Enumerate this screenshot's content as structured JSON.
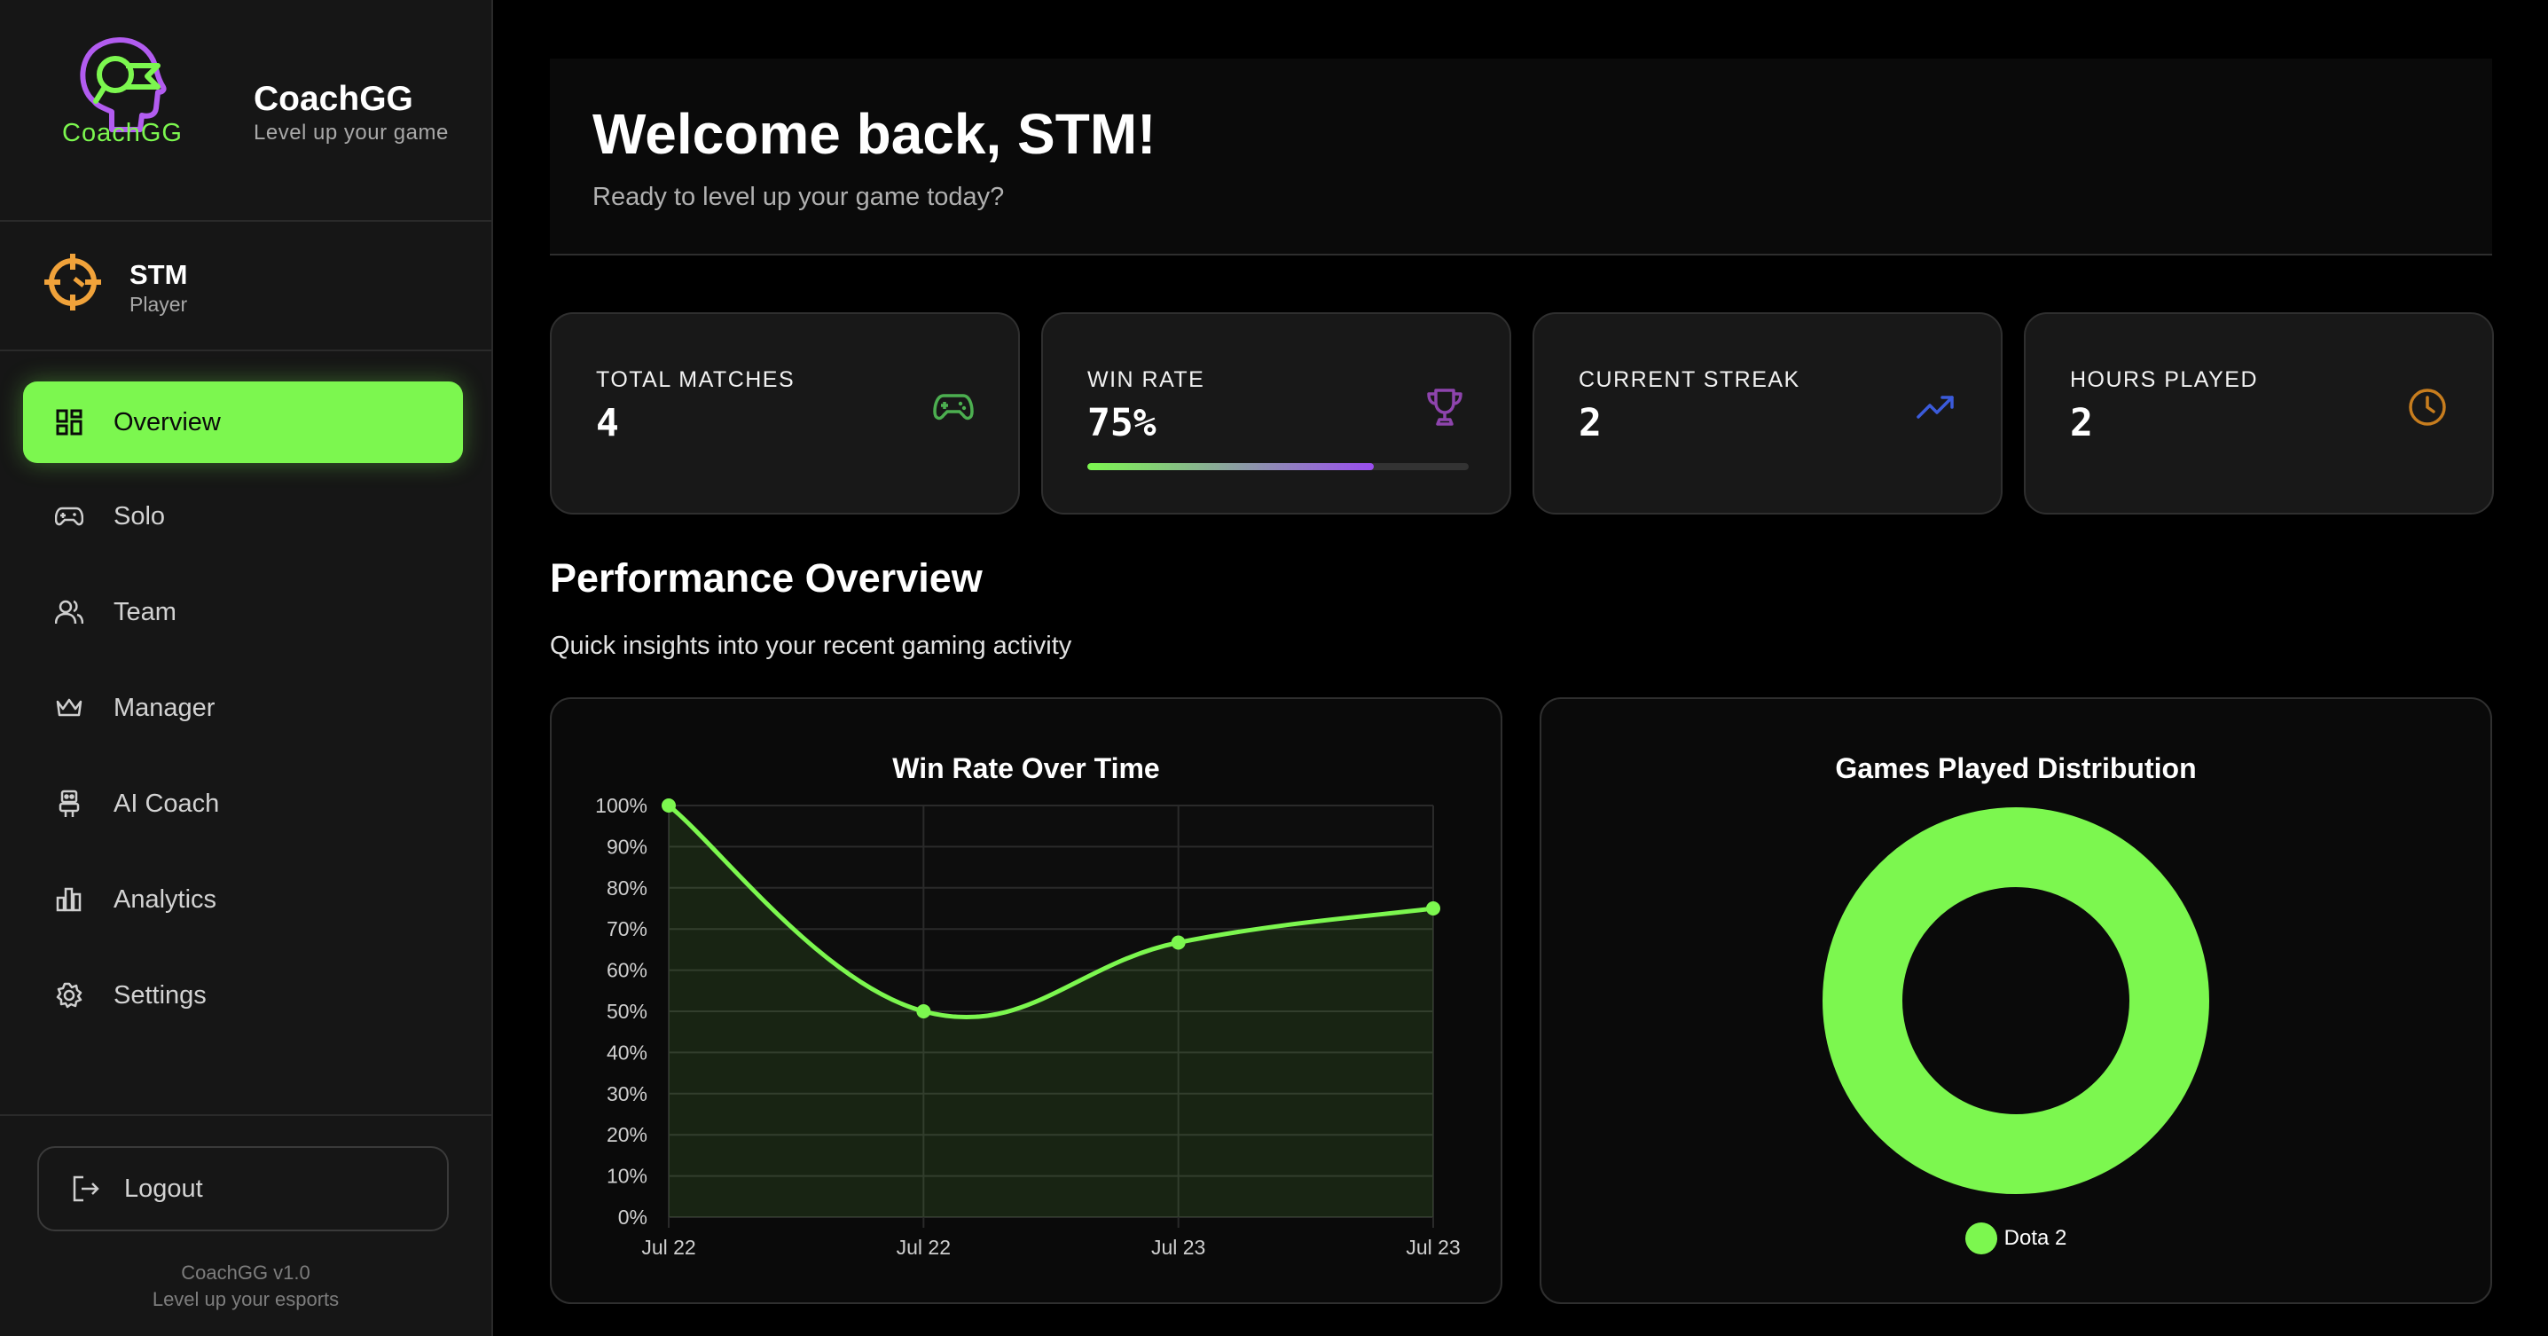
{
  "brand": {
    "logo_text_a": "Coach",
    "logo_text_b": "GG",
    "name": "CoachGG",
    "tagline": "Level up your game"
  },
  "user": {
    "name": "STM",
    "role": "Player"
  },
  "nav": {
    "items": [
      {
        "label": "Overview",
        "icon": "grid-icon",
        "active": true
      },
      {
        "label": "Solo",
        "icon": "gamepad-icon"
      },
      {
        "label": "Team",
        "icon": "users-icon"
      },
      {
        "label": "Manager",
        "icon": "crown-icon"
      },
      {
        "label": "AI Coach",
        "icon": "robot-icon"
      },
      {
        "label": "Analytics",
        "icon": "bar-chart-icon"
      },
      {
        "label": "Settings",
        "icon": "gear-icon"
      }
    ],
    "logout": "Logout",
    "version": "CoachGG v1.0",
    "version_tagline": "Level up your esports"
  },
  "welcome": {
    "title": "Welcome back, STM!",
    "subtitle": "Ready to level up your game today?"
  },
  "stats": [
    {
      "label": "TOTAL MATCHES",
      "value": "4",
      "icon": "gamepad-icon",
      "color": "#4caf50"
    },
    {
      "label": "WIN RATE",
      "value": "75%",
      "icon": "trophy-icon",
      "color": "#8e44ad",
      "progress": 0.75
    },
    {
      "label": "CURRENT STREAK",
      "value": "2",
      "icon": "trending-up-icon",
      "color": "#3b5bdb"
    },
    {
      "label": "HOURS PLAYED",
      "value": "2",
      "icon": "clock-icon",
      "color": "#c77d1e"
    }
  ],
  "performance": {
    "title": "Performance Overview",
    "subtitle": "Quick insights into your recent gaming activity"
  },
  "chart_data": [
    {
      "type": "line",
      "title": "Win Rate Over Time",
      "x": [
        "Jul 22",
        "Jul 22",
        "Jul 23",
        "Jul 23"
      ],
      "values": [
        100,
        50,
        66.7,
        75
      ],
      "ylim": [
        0,
        100
      ],
      "y_ticks": [
        "0%",
        "10%",
        "20%",
        "30%",
        "40%",
        "50%",
        "60%",
        "70%",
        "80%",
        "90%",
        "100%"
      ],
      "grid": true,
      "color": "#7cf74f"
    },
    {
      "type": "pie",
      "title": "Games Played Distribution",
      "categories": [
        "Dota 2"
      ],
      "values": [
        4
      ],
      "legend": "bottom",
      "color": "#7cf74f"
    }
  ],
  "colors": {
    "accent": "#7cf74f",
    "background": "#000000",
    "card": "#181818"
  }
}
